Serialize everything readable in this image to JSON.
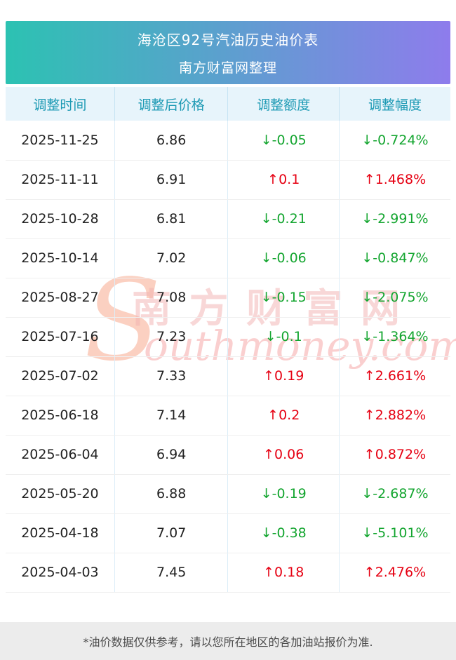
{
  "header": {
    "title": "海沧区92号汽油历史油价表",
    "subtitle": "南方财富网整理"
  },
  "chart_data": {
    "type": "table",
    "title": "海沧区92号汽油历史油价表",
    "columns": [
      "调整时间",
      "调整后价格",
      "调整额度",
      "调整幅度"
    ],
    "rows": [
      {
        "date": "2025-11-25",
        "price": "6.86",
        "change": "↓-0.05",
        "percent": "↓-0.724%",
        "direction": "down"
      },
      {
        "date": "2025-11-11",
        "price": "6.91",
        "change": "↑0.1",
        "percent": "↑1.468%",
        "direction": "up"
      },
      {
        "date": "2025-10-28",
        "price": "6.81",
        "change": "↓-0.21",
        "percent": "↓-2.991%",
        "direction": "down"
      },
      {
        "date": "2025-10-14",
        "price": "7.02",
        "change": "↓-0.06",
        "percent": "↓-0.847%",
        "direction": "down"
      },
      {
        "date": "2025-08-27",
        "price": "7.08",
        "change": "↓-0.15",
        "percent": "↓-2.075%",
        "direction": "down"
      },
      {
        "date": "2025-07-16",
        "price": "7.23",
        "change": "↓-0.1",
        "percent": "↓-1.364%",
        "direction": "down"
      },
      {
        "date": "2025-07-02",
        "price": "7.33",
        "change": "↑0.19",
        "percent": "↑2.661%",
        "direction": "up"
      },
      {
        "date": "2025-06-18",
        "price": "7.14",
        "change": "↑0.2",
        "percent": "↑2.882%",
        "direction": "up"
      },
      {
        "date": "2025-06-04",
        "price": "6.94",
        "change": "↑0.06",
        "percent": "↑0.872%",
        "direction": "up"
      },
      {
        "date": "2025-05-20",
        "price": "6.88",
        "change": "↓-0.19",
        "percent": "↓-2.687%",
        "direction": "down"
      },
      {
        "date": "2025-04-18",
        "price": "7.07",
        "change": "↓-0.38",
        "percent": "↓-5.101%",
        "direction": "down"
      },
      {
        "date": "2025-04-03",
        "price": "7.45",
        "change": "↑0.18",
        "percent": "↑2.476%",
        "direction": "up"
      }
    ]
  },
  "watermark": {
    "initial": "S",
    "line1": "南 方 财 富 网",
    "line2": "outhmoney.com"
  },
  "footer": {
    "note": "*油价数据仅供参考，请以您所在地区的各加油站报价为准."
  },
  "colors": {
    "up": "#e60012",
    "down": "#13a52f",
    "banner_start": "#2cc2b2",
    "banner_end": "#8e7cec",
    "table_head_bg": "#e7f4fb",
    "table_head_text": "#1d9ab4"
  }
}
